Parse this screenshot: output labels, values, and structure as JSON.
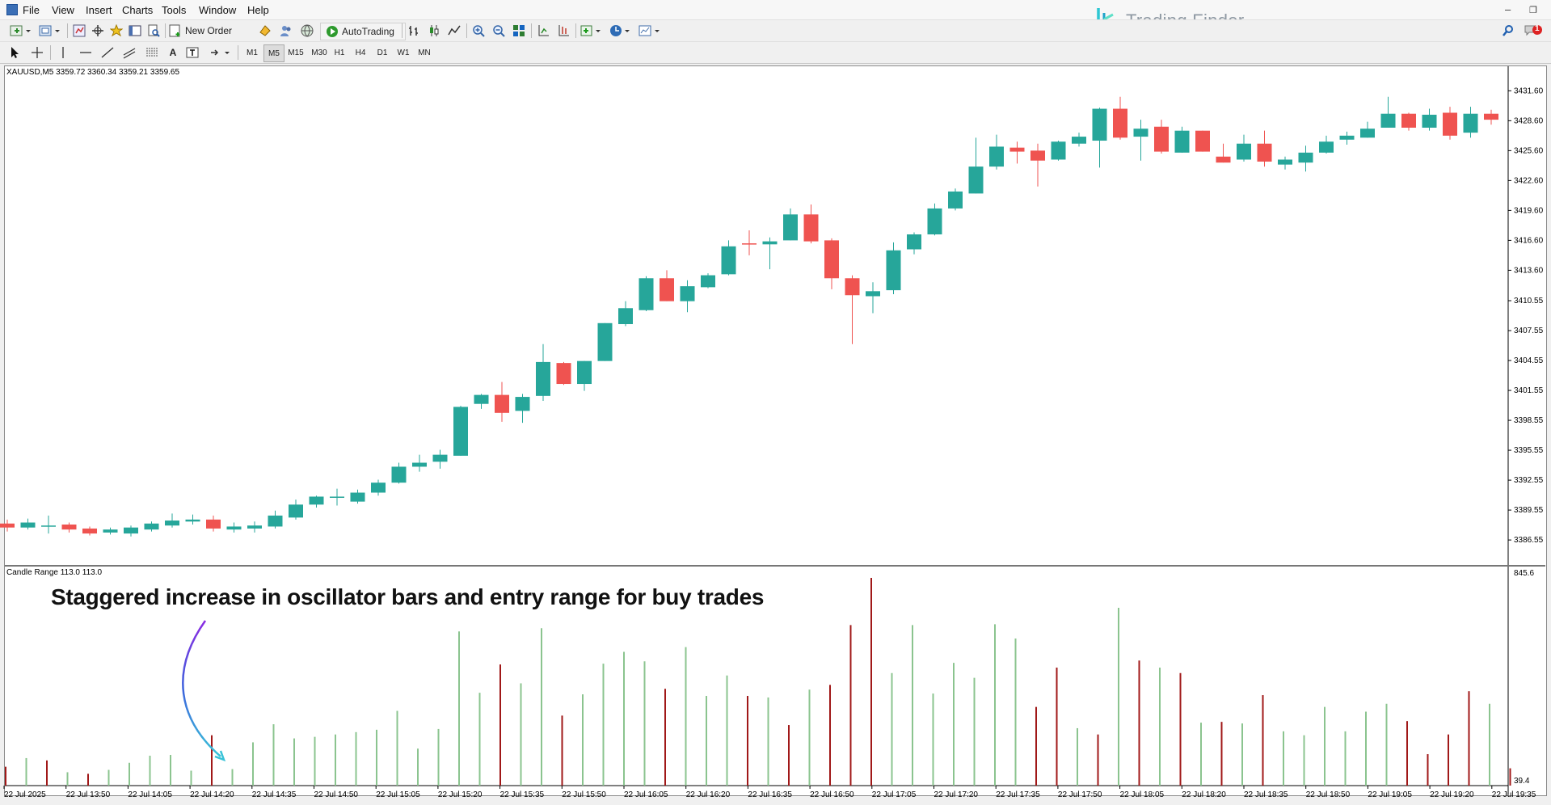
{
  "menu": {
    "items": [
      "File",
      "View",
      "Insert",
      "Charts",
      "Tools",
      "Window",
      "Help"
    ]
  },
  "toolbar": {
    "new_order_label": "New Order",
    "autotrading_label": "AutoTrading"
  },
  "timeframes": [
    "M1",
    "M5",
    "M15",
    "M30",
    "H1",
    "H4",
    "D1",
    "W1",
    "MN"
  ],
  "active_timeframe": "M5",
  "brand": {
    "name": "Trading Finder",
    "color": "#2ec7d3"
  },
  "notifications": {
    "count": "1"
  },
  "chart": {
    "symbol_info": "XAUUSD,M5  3359.72 3360.34 3359.21 3359.65",
    "indicator_info": "Candle Range 113.0 113.0",
    "annotation": "Staggered increase in oscillator bars and entry range for buy trades",
    "colors": {
      "bull": "#26a69a",
      "bear": "#ef5350",
      "osc_up": "#8bc48f",
      "osc_down": "#a01818"
    }
  },
  "chart_data": {
    "type": "candlestick",
    "symbol": "XAUUSD",
    "timeframe": "M5",
    "y_ticks": [
      "3431.60",
      "3428.60",
      "3425.60",
      "3422.60",
      "3419.60",
      "3416.60",
      "3413.60",
      "3410.55",
      "3407.55",
      "3404.55",
      "3401.55",
      "3398.55",
      "3395.55",
      "3392.55",
      "3389.55",
      "3386.55"
    ],
    "ylim": [
      3385.1,
      3432.6
    ],
    "candles": [
      {
        "o": 3388.2,
        "h": 3388.6,
        "l": 3387.4,
        "c": 3387.8
      },
      {
        "o": 3387.8,
        "h": 3388.7,
        "l": 3387.6,
        "c": 3388.3
      },
      {
        "o": 3388.0,
        "h": 3389.0,
        "l": 3387.2,
        "c": 3388.0
      },
      {
        "o": 3388.1,
        "h": 3388.3,
        "l": 3387.3,
        "c": 3387.6
      },
      {
        "o": 3387.7,
        "h": 3387.9,
        "l": 3387.0,
        "c": 3387.2
      },
      {
        "o": 3387.3,
        "h": 3387.8,
        "l": 3387.1,
        "c": 3387.6
      },
      {
        "o": 3387.2,
        "h": 3388.0,
        "l": 3386.9,
        "c": 3387.8
      },
      {
        "o": 3387.6,
        "h": 3388.4,
        "l": 3387.4,
        "c": 3388.2
      },
      {
        "o": 3388.0,
        "h": 3389.2,
        "l": 3387.8,
        "c": 3388.5
      },
      {
        "o": 3388.4,
        "h": 3389.1,
        "l": 3388.1,
        "c": 3388.6
      },
      {
        "o": 3388.6,
        "h": 3389.0,
        "l": 3387.4,
        "c": 3387.7
      },
      {
        "o": 3387.6,
        "h": 3388.3,
        "l": 3387.3,
        "c": 3387.9
      },
      {
        "o": 3387.7,
        "h": 3388.4,
        "l": 3387.3,
        "c": 3388.0
      },
      {
        "o": 3387.9,
        "h": 3389.5,
        "l": 3387.7,
        "c": 3389.0
      },
      {
        "o": 3388.8,
        "h": 3390.6,
        "l": 3388.6,
        "c": 3390.1
      },
      {
        "o": 3390.1,
        "h": 3391.0,
        "l": 3389.8,
        "c": 3390.9
      },
      {
        "o": 3390.8,
        "h": 3391.7,
        "l": 3390.0,
        "c": 3390.9
      },
      {
        "o": 3390.4,
        "h": 3391.6,
        "l": 3390.2,
        "c": 3391.3
      },
      {
        "o": 3391.3,
        "h": 3392.6,
        "l": 3391.0,
        "c": 3392.3
      },
      {
        "o": 3392.3,
        "h": 3394.3,
        "l": 3392.2,
        "c": 3393.9
      },
      {
        "o": 3393.9,
        "h": 3395.1,
        "l": 3393.4,
        "c": 3394.3
      },
      {
        "o": 3394.4,
        "h": 3395.6,
        "l": 3393.7,
        "c": 3395.1
      },
      {
        "o": 3395.0,
        "h": 3400.0,
        "l": 3395.0,
        "c": 3399.9
      },
      {
        "o": 3400.2,
        "h": 3401.2,
        "l": 3399.7,
        "c": 3401.1
      },
      {
        "o": 3401.1,
        "h": 3402.4,
        "l": 3398.4,
        "c": 3399.3
      },
      {
        "o": 3399.5,
        "h": 3401.2,
        "l": 3398.3,
        "c": 3400.9
      },
      {
        "o": 3401.0,
        "h": 3406.2,
        "l": 3400.5,
        "c": 3404.4
      },
      {
        "o": 3404.3,
        "h": 3404.4,
        "l": 3402.1,
        "c": 3402.2
      },
      {
        "o": 3402.2,
        "h": 3404.5,
        "l": 3401.5,
        "c": 3404.5
      },
      {
        "o": 3404.5,
        "h": 3408.3,
        "l": 3404.5,
        "c": 3408.3
      },
      {
        "o": 3408.2,
        "h": 3410.5,
        "l": 3408.0,
        "c": 3409.8
      },
      {
        "o": 3409.6,
        "h": 3413.0,
        "l": 3409.5,
        "c": 3412.8
      },
      {
        "o": 3412.8,
        "h": 3413.6,
        "l": 3410.5,
        "c": 3410.5
      },
      {
        "o": 3410.5,
        "h": 3412.6,
        "l": 3409.4,
        "c": 3412.0
      },
      {
        "o": 3411.9,
        "h": 3413.3,
        "l": 3411.8,
        "c": 3413.1
      },
      {
        "o": 3413.2,
        "h": 3416.6,
        "l": 3413.1,
        "c": 3416.0
      },
      {
        "o": 3416.3,
        "h": 3417.6,
        "l": 3415.1,
        "c": 3416.2
      },
      {
        "o": 3416.2,
        "h": 3416.9,
        "l": 3413.7,
        "c": 3416.5
      },
      {
        "o": 3416.6,
        "h": 3419.8,
        "l": 3416.6,
        "c": 3419.2
      },
      {
        "o": 3419.2,
        "h": 3420.2,
        "l": 3416.3,
        "c": 3416.5
      },
      {
        "o": 3416.6,
        "h": 3416.8,
        "l": 3411.7,
        "c": 3412.8
      },
      {
        "o": 3412.8,
        "h": 3413.1,
        "l": 3406.2,
        "c": 3411.1
      },
      {
        "o": 3411.0,
        "h": 3412.4,
        "l": 3409.3,
        "c": 3411.5
      },
      {
        "o": 3411.6,
        "h": 3416.4,
        "l": 3411.2,
        "c": 3415.6
      },
      {
        "o": 3415.7,
        "h": 3417.4,
        "l": 3415.2,
        "c": 3417.2
      },
      {
        "o": 3417.2,
        "h": 3420.3,
        "l": 3417.1,
        "c": 3419.8
      },
      {
        "o": 3419.8,
        "h": 3421.8,
        "l": 3419.6,
        "c": 3421.5
      },
      {
        "o": 3421.3,
        "h": 3426.9,
        "l": 3421.3,
        "c": 3424.0
      },
      {
        "o": 3424.0,
        "h": 3427.2,
        "l": 3423.7,
        "c": 3426.0
      },
      {
        "o": 3425.9,
        "h": 3426.5,
        "l": 3424.3,
        "c": 3425.5
      },
      {
        "o": 3425.6,
        "h": 3426.3,
        "l": 3422.0,
        "c": 3424.6
      },
      {
        "o": 3424.7,
        "h": 3426.6,
        "l": 3424.6,
        "c": 3426.5
      },
      {
        "o": 3426.3,
        "h": 3427.4,
        "l": 3426.0,
        "c": 3427.0
      },
      {
        "o": 3426.6,
        "h": 3429.9,
        "l": 3423.9,
        "c": 3429.8
      },
      {
        "o": 3429.8,
        "h": 3431.0,
        "l": 3426.7,
        "c": 3426.9
      },
      {
        "o": 3427.0,
        "h": 3428.7,
        "l": 3424.6,
        "c": 3427.8
      },
      {
        "o": 3428.0,
        "h": 3428.7,
        "l": 3425.3,
        "c": 3425.5
      },
      {
        "o": 3425.4,
        "h": 3428.0,
        "l": 3425.4,
        "c": 3427.6
      },
      {
        "o": 3427.6,
        "h": 3427.6,
        "l": 3425.5,
        "c": 3425.5
      },
      {
        "o": 3425.0,
        "h": 3426.3,
        "l": 3424.4,
        "c": 3424.4
      },
      {
        "o": 3424.7,
        "h": 3427.2,
        "l": 3424.5,
        "c": 3426.3
      },
      {
        "o": 3426.3,
        "h": 3427.6,
        "l": 3424.0,
        "c": 3424.5
      },
      {
        "o": 3424.2,
        "h": 3425.0,
        "l": 3423.7,
        "c": 3424.7
      },
      {
        "o": 3424.4,
        "h": 3426.1,
        "l": 3423.5,
        "c": 3425.4
      },
      {
        "o": 3425.4,
        "h": 3427.1,
        "l": 3425.3,
        "c": 3426.5
      },
      {
        "o": 3426.7,
        "h": 3427.5,
        "l": 3426.2,
        "c": 3427.1
      },
      {
        "o": 3426.9,
        "h": 3428.5,
        "l": 3426.9,
        "c": 3427.8
      },
      {
        "o": 3427.9,
        "h": 3431.0,
        "l": 3427.9,
        "c": 3429.3
      },
      {
        "o": 3429.3,
        "h": 3429.4,
        "l": 3427.6,
        "c": 3427.9
      },
      {
        "o": 3427.9,
        "h": 3429.8,
        "l": 3427.6,
        "c": 3429.2
      },
      {
        "o": 3429.4,
        "h": 3430.0,
        "l": 3426.7,
        "c": 3427.1
      },
      {
        "o": 3427.4,
        "h": 3430.0,
        "l": 3426.9,
        "c": 3429.3
      },
      {
        "o": 3429.3,
        "h": 3429.7,
        "l": 3428.2,
        "c": 3428.7
      }
    ],
    "oscillator": {
      "name": "Candle Range",
      "y_ticks": [
        "845.6",
        "39.4"
      ],
      "ylim": [
        0,
        845.6
      ],
      "values": [
        {
          "v": 120,
          "dir": "down"
        },
        {
          "v": 175,
          "dir": "up"
        },
        {
          "v": 160,
          "dir": "down"
        },
        {
          "v": 85,
          "dir": "up"
        },
        {
          "v": 75,
          "dir": "down"
        },
        {
          "v": 100,
          "dir": "up"
        },
        {
          "v": 145,
          "dir": "up"
        },
        {
          "v": 190,
          "dir": "up"
        },
        {
          "v": 195,
          "dir": "up"
        },
        {
          "v": 95,
          "dir": "up"
        },
        {
          "v": 320,
          "dir": "down"
        },
        {
          "v": 105,
          "dir": "up"
        },
        {
          "v": 275,
          "dir": "up"
        },
        {
          "v": 390,
          "dir": "up"
        },
        {
          "v": 300,
          "dir": "up"
        },
        {
          "v": 310,
          "dir": "up"
        },
        {
          "v": 325,
          "dir": "up"
        },
        {
          "v": 340,
          "dir": "up"
        },
        {
          "v": 355,
          "dir": "up"
        },
        {
          "v": 475,
          "dir": "up"
        },
        {
          "v": 235,
          "dir": "up"
        },
        {
          "v": 360,
          "dir": "up"
        },
        {
          "v": 980,
          "dir": "up"
        },
        {
          "v": 590,
          "dir": "up"
        },
        {
          "v": 770,
          "dir": "down"
        },
        {
          "v": 650,
          "dir": "up"
        },
        {
          "v": 1000,
          "dir": "up"
        },
        {
          "v": 445,
          "dir": "down"
        },
        {
          "v": 580,
          "dir": "up"
        },
        {
          "v": 775,
          "dir": "up"
        },
        {
          "v": 850,
          "dir": "up"
        },
        {
          "v": 790,
          "dir": "up"
        },
        {
          "v": 615,
          "dir": "down"
        },
        {
          "v": 880,
          "dir": "up"
        },
        {
          "v": 570,
          "dir": "up"
        },
        {
          "v": 700,
          "dir": "up"
        },
        {
          "v": 570,
          "dir": "down"
        },
        {
          "v": 560,
          "dir": "up"
        },
        {
          "v": 385,
          "dir": "down"
        },
        {
          "v": 610,
          "dir": "up"
        },
        {
          "v": 640,
          "dir": "down"
        },
        {
          "v": 1020,
          "dir": "down"
        },
        {
          "v": 1320,
          "dir": "down"
        },
        {
          "v": 715,
          "dir": "up"
        },
        {
          "v": 1020,
          "dir": "up"
        },
        {
          "v": 585,
          "dir": "up"
        },
        {
          "v": 780,
          "dir": "up"
        },
        {
          "v": 685,
          "dir": "up"
        },
        {
          "v": 1025,
          "dir": "up"
        },
        {
          "v": 935,
          "dir": "up"
        },
        {
          "v": 500,
          "dir": "down"
        },
        {
          "v": 750,
          "dir": "down"
        },
        {
          "v": 365,
          "dir": "up"
        },
        {
          "v": 325,
          "dir": "down"
        },
        {
          "v": 1130,
          "dir": "up"
        },
        {
          "v": 795,
          "dir": "down"
        },
        {
          "v": 750,
          "dir": "up"
        },
        {
          "v": 715,
          "dir": "down"
        },
        {
          "v": 400,
          "dir": "up"
        },
        {
          "v": 405,
          "dir": "down"
        },
        {
          "v": 395,
          "dir": "up"
        },
        {
          "v": 575,
          "dir": "down"
        },
        {
          "v": 345,
          "dir": "up"
        },
        {
          "v": 320,
          "dir": "up"
        },
        {
          "v": 500,
          "dir": "up"
        },
        {
          "v": 345,
          "dir": "up"
        },
        {
          "v": 470,
          "dir": "up"
        },
        {
          "v": 520,
          "dir": "up"
        },
        {
          "v": 410,
          "dir": "down"
        },
        {
          "v": 200,
          "dir": "down"
        },
        {
          "v": 325,
          "dir": "down"
        },
        {
          "v": 600,
          "dir": "down"
        },
        {
          "v": 520,
          "dir": "up"
        },
        {
          "v": 110,
          "dir": "down"
        }
      ]
    },
    "x_ticks": [
      "22 Jul 2025",
      "22 Jul 13:50",
      "22 Jul 14:05",
      "22 Jul 14:20",
      "22 Jul 14:35",
      "22 Jul 14:50",
      "22 Jul 15:05",
      "22 Jul 15:20",
      "22 Jul 15:35",
      "22 Jul 15:50",
      "22 Jul 16:05",
      "22 Jul 16:20",
      "22 Jul 16:35",
      "22 Jul 16:50",
      "22 Jul 17:05",
      "22 Jul 17:20",
      "22 Jul 17:35",
      "22 Jul 17:50",
      "22 Jul 18:05",
      "22 Jul 18:20",
      "22 Jul 18:35",
      "22 Jul 18:50",
      "22 Jul 19:05",
      "22 Jul 19:20",
      "22 Jul 19:35"
    ]
  }
}
